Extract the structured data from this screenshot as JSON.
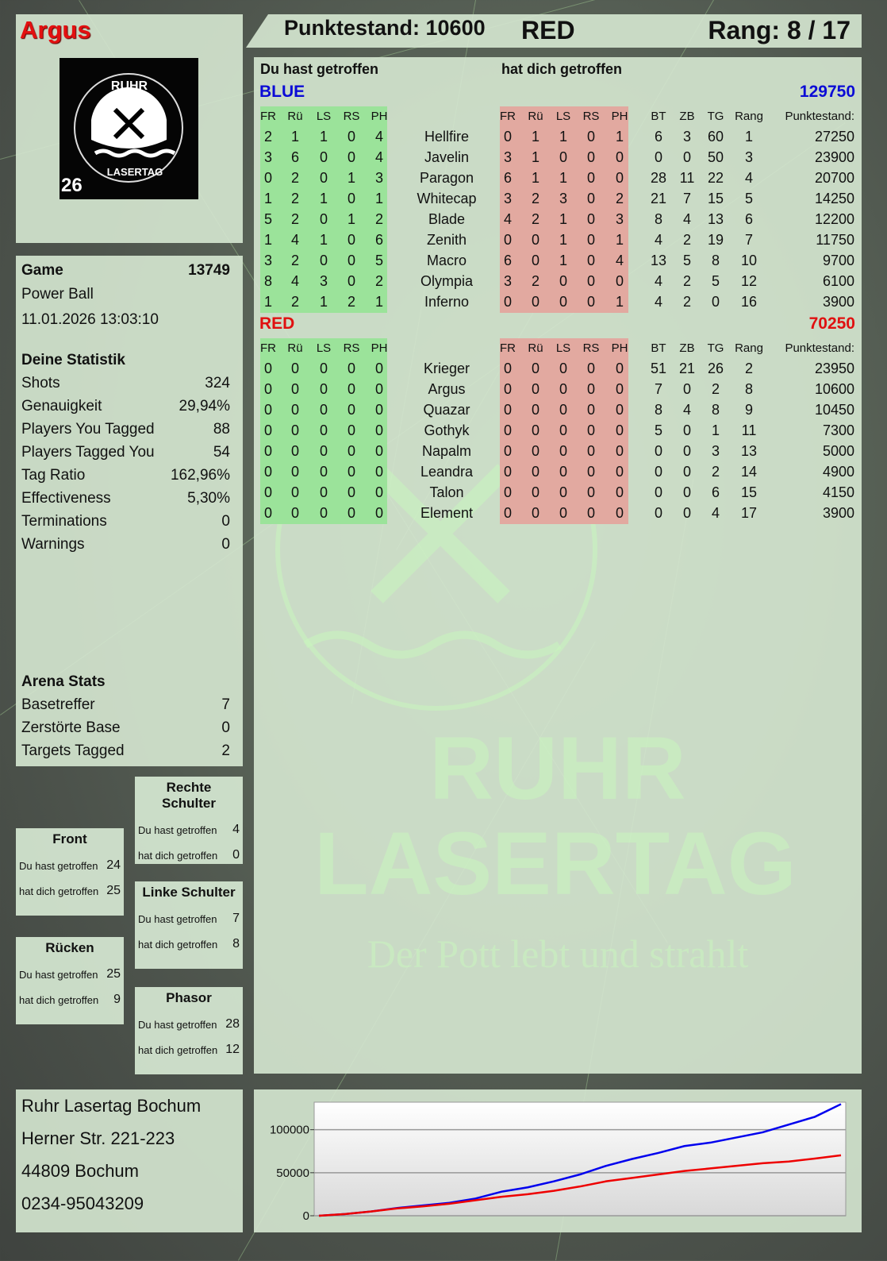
{
  "header": {
    "player_name": "Argus",
    "score_label": "Punktestand: 10600",
    "team": "RED",
    "rank_label": "Rang: 8 / 17"
  },
  "logo": {
    "top_text": "RUHR",
    "bottom_text": "LASERTAG",
    "badge": "26"
  },
  "watermark": {
    "line1": "RUHR",
    "line2": "LASERTAG",
    "slogan": "Der Pott lebt und strahlt"
  },
  "game": {
    "label": "Game",
    "id": "13749",
    "mode": "Power Ball",
    "datetime": "11.01.2026 13:03:10"
  },
  "stats": {
    "title": "Deine Statistik",
    "rows": [
      {
        "label": "Shots",
        "value": "324"
      },
      {
        "label": "Genauigkeit",
        "value": "29,94%"
      },
      {
        "label": "Players You Tagged",
        "value": "88"
      },
      {
        "label": "Players Tagged You",
        "value": "54"
      },
      {
        "label": "Tag Ratio",
        "value": "162,96%"
      },
      {
        "label": "Effectiveness",
        "value": "5,30%"
      },
      {
        "label": "Terminations",
        "value": "0"
      },
      {
        "label": "Warnings",
        "value": "0"
      }
    ]
  },
  "arena": {
    "title": "Arena Stats",
    "rows": [
      {
        "label": "Basetreffer",
        "value": "7"
      },
      {
        "label": "Zerstörte Base",
        "value": "0"
      },
      {
        "label": "Targets Tagged",
        "value": "2"
      }
    ]
  },
  "zones": [
    {
      "title": "Rechte Schulter",
      "hit_label": "Du hast getroffen",
      "hit": "4",
      "got_label": "hat dich getroffen",
      "got": "0"
    },
    {
      "title": "Front",
      "hit_label": "Du hast getroffen",
      "hit": "24",
      "got_label": "hat dich getroffen",
      "got": "25"
    },
    {
      "title": "Linke Schulter",
      "hit_label": "Du hast getroffen",
      "hit": "7",
      "got_label": "hat dich getroffen",
      "got": "8"
    },
    {
      "title": "Rücken",
      "hit_label": "Du hast getroffen",
      "hit": "25",
      "got_label": "hat dich getroffen",
      "got": "9"
    },
    {
      "title": "Phasor",
      "hit_label": "Du hast getroffen",
      "hit": "28",
      "got_label": "hat dich getroffen",
      "got": "12"
    }
  ],
  "address": [
    "Ruhr Lasertag Bochum",
    "Herner Str. 221-223",
    "44809 Bochum",
    "0234-95043209"
  ],
  "table": {
    "hit_title": "Du hast getroffen",
    "got_title": "hat dich getroffen",
    "columns": [
      "FR",
      "Rü",
      "LS",
      "RS",
      "PH",
      "FR",
      "Rü",
      "LS",
      "RS",
      "PH",
      "BT",
      "ZB",
      "TG",
      "Rang",
      "Punktestand:"
    ],
    "colors": {
      "hit_bg": "#9be39a",
      "got_bg": "#e2a9a0"
    },
    "teams": [
      {
        "name": "BLUE",
        "color": "#0b0bd6",
        "total": "129750",
        "rows": [
          [
            "2",
            "1",
            "1",
            "0",
            "4",
            "Hellfire",
            "0",
            "1",
            "1",
            "0",
            "1",
            "6",
            "3",
            "60",
            "1",
            "27250"
          ],
          [
            "3",
            "6",
            "0",
            "0",
            "4",
            "Javelin",
            "3",
            "1",
            "0",
            "0",
            "0",
            "0",
            "0",
            "50",
            "3",
            "23900"
          ],
          [
            "0",
            "2",
            "0",
            "1",
            "3",
            "Paragon",
            "6",
            "1",
            "1",
            "0",
            "0",
            "28",
            "11",
            "22",
            "4",
            "20700"
          ],
          [
            "1",
            "2",
            "1",
            "0",
            "1",
            "Whitecap",
            "3",
            "2",
            "3",
            "0",
            "2",
            "21",
            "7",
            "15",
            "5",
            "14250"
          ],
          [
            "5",
            "2",
            "0",
            "1",
            "2",
            "Blade",
            "4",
            "2",
            "1",
            "0",
            "3",
            "8",
            "4",
            "13",
            "6",
            "12200"
          ],
          [
            "1",
            "4",
            "1",
            "0",
            "6",
            "Zenith",
            "0",
            "0",
            "1",
            "0",
            "1",
            "4",
            "2",
            "19",
            "7",
            "11750"
          ],
          [
            "3",
            "2",
            "0",
            "0",
            "5",
            "Macro",
            "6",
            "0",
            "1",
            "0",
            "4",
            "13",
            "5",
            "8",
            "10",
            "9700"
          ],
          [
            "8",
            "4",
            "3",
            "0",
            "2",
            "Olympia",
            "3",
            "2",
            "0",
            "0",
            "0",
            "4",
            "2",
            "5",
            "12",
            "6100"
          ],
          [
            "1",
            "2",
            "1",
            "2",
            "1",
            "Inferno",
            "0",
            "0",
            "0",
            "0",
            "1",
            "4",
            "2",
            "0",
            "16",
            "3900"
          ]
        ]
      },
      {
        "name": "RED",
        "color": "#e01010",
        "total": "70250",
        "rows": [
          [
            "0",
            "0",
            "0",
            "0",
            "0",
            "Krieger",
            "0",
            "0",
            "0",
            "0",
            "0",
            "51",
            "21",
            "26",
            "2",
            "23950"
          ],
          [
            "0",
            "0",
            "0",
            "0",
            "0",
            "Argus",
            "0",
            "0",
            "0",
            "0",
            "0",
            "7",
            "0",
            "2",
            "8",
            "10600"
          ],
          [
            "0",
            "0",
            "0",
            "0",
            "0",
            "Quazar",
            "0",
            "0",
            "0",
            "0",
            "0",
            "8",
            "4",
            "8",
            "9",
            "10450"
          ],
          [
            "0",
            "0",
            "0",
            "0",
            "0",
            "Gothyk",
            "0",
            "0",
            "0",
            "0",
            "0",
            "5",
            "0",
            "1",
            "11",
            "7300"
          ],
          [
            "0",
            "0",
            "0",
            "0",
            "0",
            "Napalm",
            "0",
            "0",
            "0",
            "0",
            "0",
            "0",
            "0",
            "3",
            "13",
            "5000"
          ],
          [
            "0",
            "0",
            "0",
            "0",
            "0",
            "Leandra",
            "0",
            "0",
            "0",
            "0",
            "0",
            "0",
            "0",
            "2",
            "14",
            "4900"
          ],
          [
            "0",
            "0",
            "0",
            "0",
            "0",
            "Talon",
            "0",
            "0",
            "0",
            "0",
            "0",
            "0",
            "0",
            "6",
            "15",
            "4150"
          ],
          [
            "0",
            "0",
            "0",
            "0",
            "0",
            "Element",
            "0",
            "0",
            "0",
            "0",
            "0",
            "0",
            "0",
            "4",
            "17",
            "3900"
          ]
        ]
      }
    ]
  },
  "chart_data": {
    "type": "line",
    "title": "",
    "xlabel": "",
    "ylabel": "",
    "ylim": [
      0,
      132000
    ],
    "yticks": [
      "0",
      "50000",
      "100000"
    ],
    "ytick_values": [
      0,
      50000,
      100000
    ],
    "grid": true,
    "x": [
      0,
      1,
      2,
      3,
      4,
      5,
      6,
      7,
      8,
      9,
      10,
      11,
      12,
      13,
      14,
      15,
      16,
      17,
      18,
      19,
      20
    ],
    "series": [
      {
        "color": "#0000ee",
        "values": [
          0,
          2000,
          5000,
          9000,
          12000,
          15000,
          20000,
          28000,
          33000,
          40000,
          48000,
          58000,
          66000,
          73000,
          81000,
          85000,
          91000,
          97000,
          106000,
          115000,
          129750
        ]
      },
      {
        "color": "#ee0000",
        "values": [
          0,
          2000,
          5000,
          8500,
          11000,
          14000,
          18000,
          22000,
          25000,
          29000,
          34000,
          40000,
          44000,
          48000,
          52000,
          55000,
          58000,
          61000,
          63000,
          66500,
          70250
        ]
      }
    ]
  }
}
